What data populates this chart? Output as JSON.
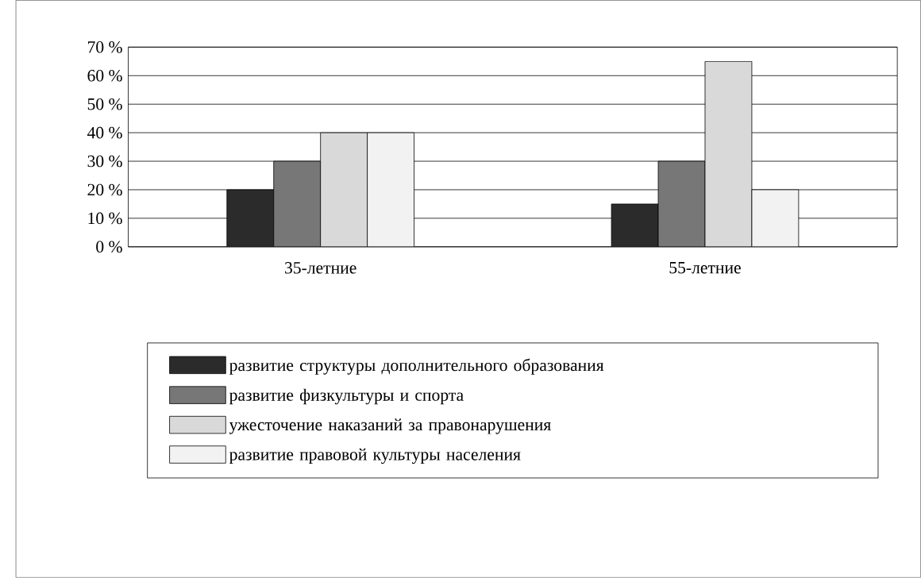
{
  "chart_data": {
    "type": "bar",
    "categories": [
      "35-летние",
      "55-летние"
    ],
    "series": [
      {
        "name": "развитие структуры дополнительного образования",
        "color": "#2b2b2b",
        "values": [
          20,
          15
        ]
      },
      {
        "name": "развитие физкультуры и спорта",
        "color": "#777777",
        "values": [
          30,
          30
        ]
      },
      {
        "name": "ужесточение наказаний за правонарушения",
        "color": "#d9d9d9",
        "values": [
          40,
          65
        ]
      },
      {
        "name": "развитие правовой культуры населения",
        "color": "#f2f2f2",
        "values": [
          40,
          20
        ]
      }
    ],
    "ylim": [
      0,
      70
    ],
    "yticks": [
      {
        "value": 0,
        "label": "0 %"
      },
      {
        "value": 10,
        "label": "10 %"
      },
      {
        "value": 20,
        "label": "20 %"
      },
      {
        "value": 30,
        "label": "30 %"
      },
      {
        "value": 40,
        "label": "40 %"
      },
      {
        "value": 50,
        "label": "50 %"
      },
      {
        "value": 60,
        "label": "60 %"
      },
      {
        "value": 70,
        "label": "70 %"
      }
    ],
    "grid": "y",
    "legend": "bottom"
  }
}
